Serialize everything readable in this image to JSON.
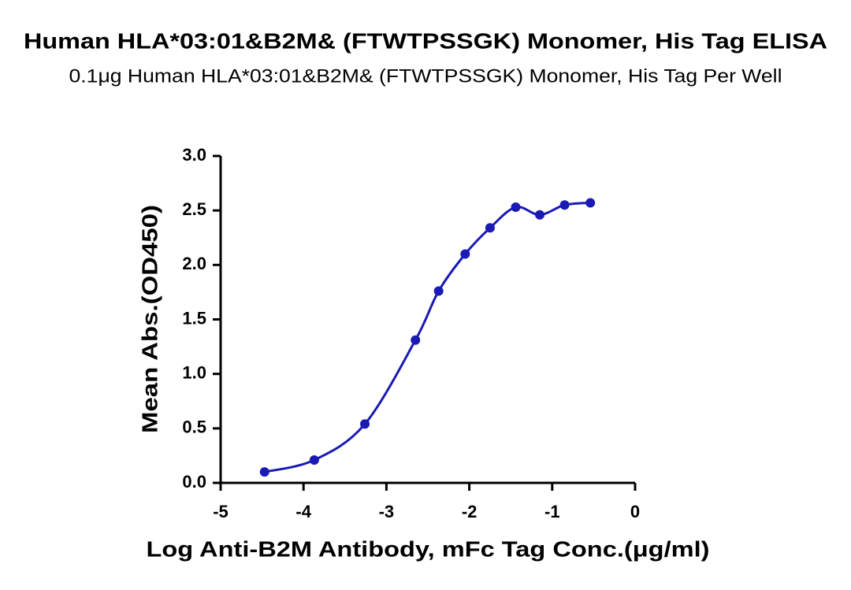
{
  "chart_data": {
    "type": "scatter",
    "title": "Human HLA*03:01&B2M& (FTWTPSSGK) Monomer, His Tag ELISA",
    "subtitle": "0.1μg Human HLA*03:01&B2M& (FTWTPSSGK) Monomer, His Tag Per Well",
    "x_label": "Log Anti-B2M Antibody, mFc Tag Conc.(μg/ml)",
    "y_label": "Mean Abs.(OD450)",
    "x": [
      -4.47,
      -3.87,
      -3.26,
      -2.65,
      -2.37,
      -2.05,
      -1.75,
      -1.44,
      -1.15,
      -0.85,
      -0.54
    ],
    "values": [
      0.1,
      0.21,
      0.54,
      1.31,
      1.76,
      2.1,
      2.34,
      2.53,
      2.46,
      2.55,
      2.57
    ],
    "color": "#1a1ab4",
    "xlim": [
      -5,
      0
    ],
    "xticks": [
      -5,
      -4,
      -3,
      -2,
      -1,
      0
    ],
    "ylim": [
      0,
      3
    ],
    "yticks": [
      {
        "value": 0,
        "label": "0.0"
      },
      0.5,
      {
        "value": 1,
        "label": "1.0"
      },
      1.5,
      {
        "value": 2,
        "label": "2.0"
      },
      2.5,
      {
        "value": 3,
        "label": "3.0"
      }
    ],
    "grid": false
  }
}
